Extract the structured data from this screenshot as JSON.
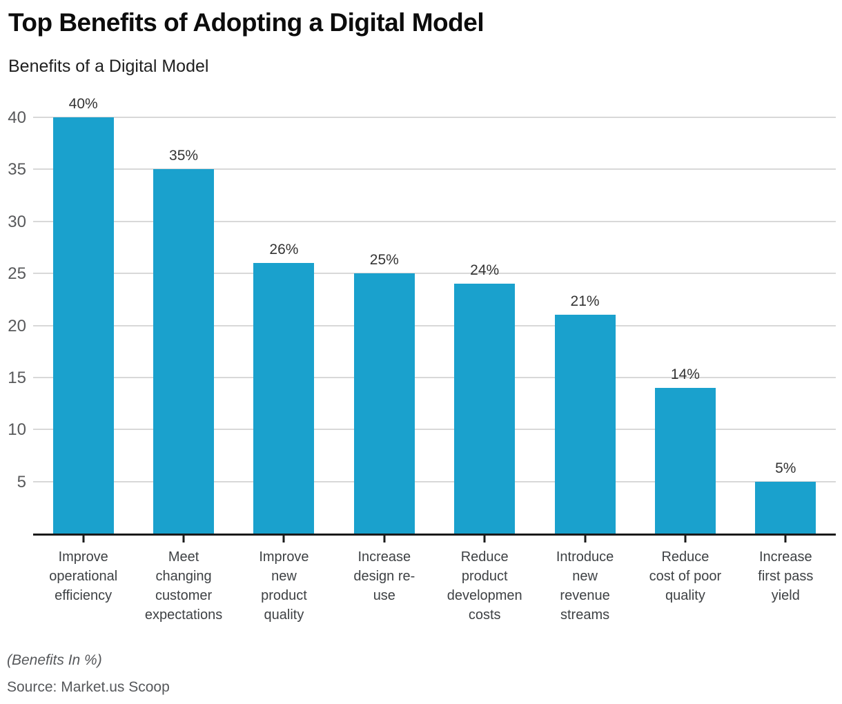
{
  "title": "Top Benefits of Adopting a Digital Model",
  "subtitle": "Benefits of a Digital Model",
  "footer": {
    "units_note": "(Benefits In %)",
    "source": "Source: Market.us Scoop"
  },
  "colors": {
    "bar": "#1aa1cd",
    "gridline": "#d8d8d8",
    "axis_line": "#1a1a1a",
    "value_label": "#333333",
    "y_tick_label": "#58595b",
    "x_tick_label": "#3e4144",
    "note_text": "#56585b"
  },
  "chart_data": {
    "type": "bar",
    "title": "Top Benefits of Adopting a Digital Model",
    "subtitle": "Benefits of a Digital Model",
    "categories": [
      "Improve operational efficiency",
      "Meet changing customer expectations",
      "Improve new product quality",
      "Increase design re-use",
      "Reduce product developmen costs",
      "Introduce new revenue streams",
      "Reduce cost of poor quality",
      "Increase first pass yield"
    ],
    "category_lines": [
      [
        "Improve",
        "operational",
        "efficiency"
      ],
      [
        "Meet",
        "changing",
        "customer",
        "expectations"
      ],
      [
        "Improve",
        "new",
        "product",
        "quality"
      ],
      [
        "Increase",
        "design re-",
        "use"
      ],
      [
        "Reduce",
        "product",
        "developmen",
        "costs"
      ],
      [
        "Introduce",
        "new",
        "revenue",
        "streams"
      ],
      [
        "Reduce",
        "cost of poor",
        "quality"
      ],
      [
        "Increase",
        "first pass",
        "yield"
      ]
    ],
    "values": [
      40,
      35,
      26,
      25,
      24,
      21,
      14,
      5
    ],
    "value_labels": [
      "40%",
      "35%",
      "26%",
      "25%",
      "24%",
      "21%",
      "14%",
      "5%"
    ],
    "xlabel": "",
    "ylabel": "",
    "ylim": [
      0,
      40
    ],
    "yticks": [
      5,
      10,
      15,
      20,
      25,
      30,
      35,
      40
    ],
    "grid": true,
    "legend": false,
    "units": "%"
  }
}
